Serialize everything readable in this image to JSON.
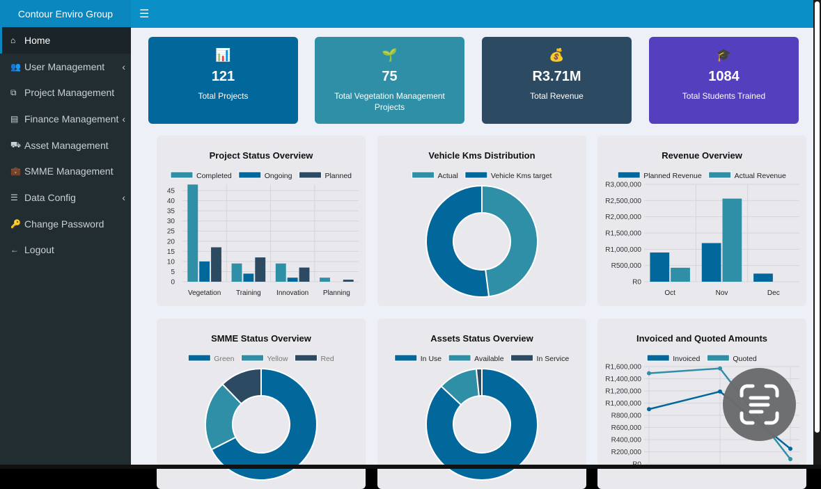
{
  "app": {
    "brand": "Contour Enviro Group",
    "menu_icon": "hamburger-icon"
  },
  "sidebar": {
    "items": [
      {
        "label": "Home",
        "icon": "home-icon",
        "glyph": "⌂",
        "active": true,
        "chevron": false
      },
      {
        "label": "User Management",
        "icon": "users-icon",
        "glyph": "👥",
        "chevron": true
      },
      {
        "label": "Project Management",
        "icon": "project-diagram-icon",
        "glyph": "⧉",
        "chevron": false
      },
      {
        "label": "Finance Management",
        "icon": "money-check-icon",
        "glyph": "▤",
        "chevron": true
      },
      {
        "label": "Asset Management",
        "icon": "car-icon",
        "glyph": "⛟",
        "chevron": false
      },
      {
        "label": "SMME Management",
        "icon": "briefcase-icon",
        "glyph": "💼",
        "chevron": false
      },
      {
        "label": "Data Config",
        "icon": "sliders-icon",
        "glyph": "☰",
        "chevron": true
      },
      {
        "label": "Change Password",
        "icon": "key-icon",
        "glyph": "🔑",
        "chevron": false
      },
      {
        "label": "Logout",
        "icon": "arrow-left-icon",
        "glyph": "←",
        "chevron": false
      }
    ]
  },
  "cards": [
    {
      "icon": "bar-chart-icon",
      "emoji": "📊",
      "value": "121",
      "label": "Total Projects",
      "color": "#02679a"
    },
    {
      "icon": "seedling-icon",
      "emoji": "🌱",
      "value": "75",
      "label": "Total Vegetation Management Projects",
      "color": "#2e8fa6"
    },
    {
      "icon": "money-bag-icon",
      "emoji": "💰",
      "value": "R3.71M",
      "label": "Total Revenue",
      "color": "#2c4a62"
    },
    {
      "icon": "graduation-cap-icon",
      "emoji": "🎓",
      "value": "1084",
      "label": "Total Students Trained",
      "color": "#543fbf"
    }
  ],
  "colors": {
    "teal": "#2e8fa6",
    "blue": "#02679a",
    "dark": "#2c4a62"
  },
  "chart_data": [
    {
      "id": "project-status",
      "type": "bar",
      "title": "Project Status Overview",
      "categories": [
        "Vegetation",
        "Training",
        "Innovation",
        "Planning"
      ],
      "series": [
        {
          "name": "Completed",
          "color": "#2e8fa6",
          "values": [
            48,
            9,
            9,
            2
          ]
        },
        {
          "name": "Ongoing",
          "color": "#02679a",
          "values": [
            10,
            4,
            2,
            0
          ]
        },
        {
          "name": "Planned",
          "color": "#2c4a62",
          "values": [
            17,
            12,
            7,
            1
          ]
        }
      ],
      "ylim": [
        0,
        48
      ],
      "yticks": [
        "0",
        "5",
        "10",
        "15",
        "20",
        "25",
        "30",
        "35",
        "40",
        "45"
      ],
      "grid": true,
      "legend": "top"
    },
    {
      "id": "vehicle-kms",
      "type": "pie",
      "title": "Vehicle Kms Distribution",
      "labels": [
        "Actual",
        "Vehicle Kms target"
      ],
      "values": [
        48,
        52
      ],
      "colors": [
        "#2e8fa6",
        "#02679a"
      ],
      "legend": "top"
    },
    {
      "id": "revenue",
      "type": "bar",
      "title": "Revenue Overview",
      "categories": [
        "Oct",
        "Nov",
        "Dec"
      ],
      "series": [
        {
          "name": "Planned Revenue",
          "color": "#02679a",
          "values": [
            900000,
            1190000,
            250000
          ]
        },
        {
          "name": "Actual Revenue",
          "color": "#2e8fa6",
          "values": [
            430000,
            2560000,
            0
          ]
        }
      ],
      "ylim": [
        0,
        3000000
      ],
      "yticks": [
        "R0",
        "R500,000",
        "R1,000,000",
        "R1,500,000",
        "R2,000,000",
        "R2,500,000",
        "R3,000,000"
      ],
      "grid": true,
      "legend": "top"
    },
    {
      "id": "smme-status",
      "type": "pie",
      "title": "SMME Status Overview",
      "labels": [
        "Green",
        "Yellow",
        "Red"
      ],
      "values": [
        67.5,
        20.3,
        12.2
      ],
      "colors": [
        "#02679a",
        "#2e8fa6",
        "#2c4a62"
      ],
      "legend": "top"
    },
    {
      "id": "assets-status",
      "type": "pie",
      "title": "Assets Status Overview",
      "labels": [
        "In Use",
        "Available",
        "In Service"
      ],
      "values": [
        87,
        11.4,
        1.6
      ],
      "colors": [
        "#02679a",
        "#2e8fa6",
        "#2c4a62"
      ],
      "legend": "top"
    },
    {
      "id": "invoiced-quoted",
      "type": "line",
      "title": "Invoiced and Quoted Amounts",
      "series": [
        {
          "name": "Invoiced",
          "color": "#02679a",
          "values": [
            900000,
            1190000,
            250000
          ]
        },
        {
          "name": "Quoted",
          "color": "#2e8fa6",
          "values": [
            1490000,
            1570000,
            80000
          ]
        }
      ],
      "ylim": [
        0,
        1600000
      ],
      "yticks": [
        "R0",
        "R200,000",
        "R400,000",
        "R600,000",
        "R800,000",
        "R1,000,000",
        "R1,200,000",
        "R1,400,000",
        "R1,600,000"
      ],
      "grid": true,
      "legend": "top"
    }
  ],
  "overlay": {
    "icon": "text-scan-icon"
  }
}
